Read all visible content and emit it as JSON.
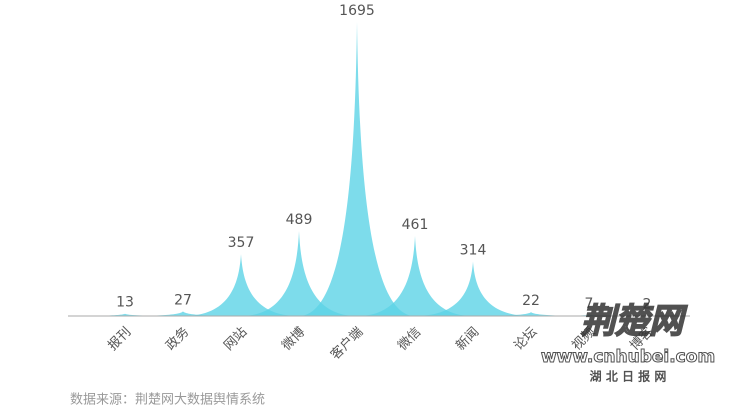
{
  "chart_data": {
    "type": "spike",
    "categories": [
      "报刊",
      "政务",
      "网站",
      "微博",
      "客户端",
      "微信",
      "新闻",
      "论坛",
      "视频",
      "博客"
    ],
    "values": [
      13,
      27,
      357,
      489,
      1695,
      461,
      314,
      22,
      7,
      2
    ],
    "color": "#5dd3e6",
    "source": "数据来源：荆楚网大数据舆情系统"
  },
  "watermark": {
    "logo": "荆楚网",
    "url": "www.cnhubei.com",
    "sub": "湖 北 日 报 网"
  }
}
